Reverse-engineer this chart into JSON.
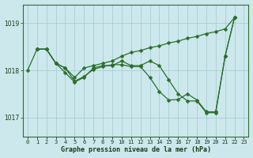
{
  "xlabel": "Graphe pression niveau de la mer (hPa)",
  "bg_color": "#cce8ec",
  "grid_color": "#aacdd4",
  "line_color": "#2d6e2d",
  "x": [
    0,
    1,
    2,
    3,
    4,
    5,
    6,
    7,
    8,
    9,
    10,
    11,
    12,
    13,
    14,
    15,
    16,
    17,
    18,
    19,
    20,
    21,
    22,
    23
  ],
  "line1": [
    1018.0,
    1018.45,
    1018.45,
    1018.15,
    1018.05,
    1017.77,
    1017.87,
    1018.02,
    1018.08,
    1018.12,
    1018.12,
    1018.08,
    1018.08,
    1017.85,
    1017.55,
    1017.37,
    1017.38,
    1017.5,
    1017.37,
    1017.12,
    1017.12,
    1018.3,
    1019.12,
    null
  ],
  "line2": [
    null,
    1018.45,
    1018.45,
    1018.15,
    1018.05,
    1017.85,
    1018.05,
    1018.1,
    1018.15,
    1018.2,
    1018.3,
    1018.38,
    1018.42,
    1018.48,
    1018.52,
    1018.58,
    1018.62,
    1018.68,
    1018.72,
    1018.78,
    1018.82,
    1018.88,
    1019.12,
    null
  ],
  "line3": [
    null,
    1018.45,
    1018.45,
    1018.15,
    1017.95,
    1017.75,
    1017.85,
    1018.05,
    1018.1,
    1018.1,
    1018.2,
    1018.1,
    1018.1,
    1018.2,
    1018.1,
    1017.8,
    1017.5,
    1017.35,
    1017.35,
    1017.1,
    1017.1,
    1018.3,
    1019.12,
    null
  ],
  "yticks": [
    1017,
    1018,
    1019
  ],
  "ylim": [
    1016.6,
    1019.4
  ],
  "xlim": [
    -0.5,
    23.5
  ],
  "xtick_labels": [
    "0",
    "1",
    "2",
    "3",
    "4",
    "5",
    "6",
    "7",
    "8",
    "9",
    "10",
    "11",
    "12",
    "13",
    "14",
    "15",
    "16",
    "17",
    "18",
    "19",
    "20",
    "21",
    "22",
    "23"
  ]
}
